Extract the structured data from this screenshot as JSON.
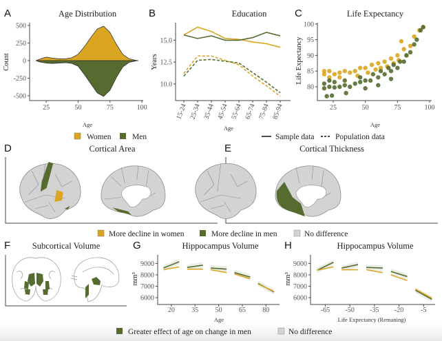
{
  "colors": {
    "women": "#DAA520",
    "men": "#556B2F",
    "no_difference": "#D3D3D3",
    "outline": "#8a8a8a"
  },
  "panels": {
    "A": {
      "letter": "A",
      "title": "Age Distribution"
    },
    "B": {
      "letter": "B",
      "title": "Education"
    },
    "C": {
      "letter": "C",
      "title": "Life Expectancy"
    },
    "D": {
      "letter": "D",
      "title": "Cortical Area"
    },
    "E": {
      "letter": "E",
      "title": "Cortical Thickness"
    },
    "F": {
      "letter": "F",
      "title": "Subcortical Volume"
    },
    "G": {
      "letter": "G",
      "title": "Hippocampus Volume"
    },
    "H": {
      "letter": "H",
      "title": "Hippocampus Volume"
    }
  },
  "legends": {
    "sex": {
      "women": "Women",
      "men": "Men"
    },
    "data_type": {
      "sample": "Sample data",
      "population": "Population data"
    },
    "cortical": {
      "women": "More decline in women",
      "men": "More decline in men",
      "none": "No difference"
    },
    "hippocampus": {
      "men": "Greater effect of age on change in men",
      "none": "No difference"
    }
  },
  "chart_data": [
    {
      "panel": "A",
      "type": "area",
      "title": "Age Distribution",
      "xlabel": "Age",
      "ylabel": "Count",
      "xlim": [
        12,
        101
      ],
      "ylim": [
        -569,
        539
      ],
      "xticks": [
        25,
        50,
        75,
        100
      ],
      "yticks": [
        500,
        250,
        0,
        -250,
        -500
      ],
      "x": [
        17,
        20,
        25,
        30,
        35,
        40,
        45,
        50,
        55,
        60,
        65,
        70,
        75,
        80,
        85,
        90,
        95,
        97
      ],
      "series": [
        {
          "name": "Women",
          "values": [
            0,
            20,
            50,
            35,
            25,
            25,
            40,
            90,
            200,
            330,
            450,
            490,
            400,
            230,
            90,
            25,
            5,
            0
          ]
        },
        {
          "name": "Men",
          "values": [
            0,
            -20,
            -35,
            -40,
            -35,
            -30,
            -40,
            -80,
            -200,
            -330,
            -460,
            -510,
            -420,
            -240,
            -90,
            -25,
            -5,
            0
          ]
        }
      ]
    },
    {
      "panel": "B",
      "type": "line",
      "title": "Education",
      "xlabel": "Age",
      "ylabel": "Years",
      "ylim": [
        8.1,
        17
      ],
      "yticks": [
        15.0,
        12.5,
        10.0
      ],
      "categories": [
        "15-24",
        "25-34",
        "35-44",
        "45-54",
        "55-64",
        "65-74",
        "75-84",
        "85-94"
      ],
      "series": [
        {
          "sex": "Women",
          "source": "Sample data",
          "values": [
            15.6,
            16.5,
            16.0,
            15.2,
            15.1,
            14.8,
            14.6,
            14.2
          ]
        },
        {
          "sex": "Men",
          "source": "Sample data",
          "values": [
            15.6,
            15.2,
            15.5,
            15.0,
            15.0,
            15.3,
            15.9,
            15.5
          ]
        },
        {
          "sex": "Women",
          "source": "Population data",
          "values": [
            11.2,
            13.2,
            13.2,
            12.7,
            12.2,
            10.9,
            9.8,
            8.6
          ]
        },
        {
          "sex": "Men",
          "source": "Population data",
          "values": [
            10.9,
            12.7,
            12.8,
            12.6,
            12.4,
            11.3,
            10.2,
            9.0
          ]
        }
      ]
    },
    {
      "panel": "C",
      "type": "scatter",
      "title": "Life Expectancy",
      "xlabel": "Age",
      "ylabel": "Life Expectancy",
      "xlim": [
        12.7,
        101.6
      ],
      "ylim": [
        75.6,
        100.4
      ],
      "xticks": [
        25,
        50,
        75,
        100
      ],
      "yticks": [
        100,
        95,
        90,
        85,
        80
      ],
      "series": [
        {
          "sex": "Women",
          "points": [
            [
              18,
              84
            ],
            [
              18,
              85
            ],
            [
              22,
              83
            ],
            [
              22,
              85
            ],
            [
              26,
              84
            ],
            [
              30,
              84.5
            ],
            [
              30,
              83
            ],
            [
              34,
              85
            ],
            [
              38,
              84.5
            ],
            [
              42,
              85
            ],
            [
              44,
              83.5
            ],
            [
              46,
              86
            ],
            [
              50,
              86
            ],
            [
              52,
              84.5
            ],
            [
              55,
              87
            ],
            [
              58,
              85.5
            ],
            [
              60,
              87.5
            ],
            [
              62,
              86
            ],
            [
              65,
              88
            ],
            [
              67,
              86.5
            ],
            [
              70,
              89
            ],
            [
              72,
              87.5
            ],
            [
              75,
              90
            ],
            [
              76,
              88.5
            ],
            [
              78,
              94.5
            ],
            [
              80,
              92
            ],
            [
              82,
              90
            ],
            [
              85,
              93
            ],
            [
              88,
              96
            ],
            [
              92,
              98
            ],
            [
              95,
              99
            ]
          ]
        },
        {
          "sex": "Men",
          "points": [
            [
              18,
              79.5
            ],
            [
              18,
              81
            ],
            [
              22,
              80
            ],
            [
              22,
              82
            ],
            [
              26,
              79.8
            ],
            [
              26,
              81.5
            ],
            [
              30,
              80
            ],
            [
              34,
              80.5
            ],
            [
              34,
              82
            ],
            [
              38,
              80
            ],
            [
              42,
              81
            ],
            [
              46,
              81.5
            ],
            [
              46,
              83
            ],
            [
              50,
              82
            ],
            [
              54,
              82
            ],
            [
              56,
              84
            ],
            [
              60,
              83
            ],
            [
              62,
              85
            ],
            [
              65,
              84
            ],
            [
              68,
              86
            ],
            [
              70,
              85
            ],
            [
              72,
              87
            ],
            [
              75,
              86
            ],
            [
              77,
              88
            ],
            [
              80,
              88
            ],
            [
              82,
              90
            ],
            [
              85,
              91
            ],
            [
              88,
              93.5
            ],
            [
              90,
              95
            ],
            [
              93,
              98
            ],
            [
              95,
              99
            ],
            [
              20,
              77
            ],
            [
              24,
              77.2
            ],
            [
              35,
              78
            ],
            [
              50,
              79.5
            ],
            [
              60,
              80.5
            ],
            [
              70,
              82.5
            ]
          ]
        }
      ]
    },
    {
      "panel": "G",
      "type": "line",
      "title": "Hippocampus Volume",
      "xlabel": "Age",
      "ylabel": "mm³",
      "xlim": [
        11.3,
        88.6
      ],
      "ylim": [
        5400,
        9750
      ],
      "xticks": [
        20,
        35,
        50,
        65,
        80
      ],
      "yticks": [
        9000,
        8000,
        7000,
        6000
      ],
      "series": [
        {
          "sex": "Men",
          "segments": [
            [
              [
                15,
                8600
              ],
              [
                25,
                9150
              ]
            ],
            [
              [
                30,
                8650
              ],
              [
                40,
                8850
              ]
            ],
            [
              [
                45,
                8600
              ],
              [
                55,
                8500
              ]
            ],
            [
              [
                60,
                8200
              ],
              [
                70,
                7800
              ]
            ],
            [
              [
                75,
                7250
              ],
              [
                85,
                6500
              ]
            ]
          ]
        },
        {
          "sex": "Women",
          "segments": [
            [
              [
                15,
                8450
              ],
              [
                25,
                8700
              ]
            ],
            [
              [
                30,
                8500
              ],
              [
                40,
                8500
              ]
            ],
            [
              [
                45,
                8450
              ],
              [
                55,
                8200
              ]
            ],
            [
              [
                60,
                8100
              ],
              [
                70,
                7650
              ]
            ],
            [
              [
                75,
                7200
              ],
              [
                85,
                6550
              ]
            ]
          ]
        }
      ]
    },
    {
      "panel": "H",
      "type": "line",
      "title": "Hippocampus Volume",
      "xlabel": "Life Expectancy (Remaning)",
      "ylabel": "mm³",
      "xlim": [
        -74,
        2
      ],
      "ylim": [
        5400,
        9750
      ],
      "xticks": [
        -65,
        -50,
        -35,
        -20,
        -5
      ],
      "yticks": [
        9000,
        8000,
        7000,
        6000
      ],
      "series": [
        {
          "sex": "Men",
          "segments": [
            [
              [
                -70,
                8400
              ],
              [
                -60,
                9100
              ]
            ],
            [
              [
                -55,
                8600
              ],
              [
                -45,
                8900
              ]
            ],
            [
              [
                -40,
                8650
              ],
              [
                -30,
                8600
              ]
            ],
            [
              [
                -25,
                8300
              ],
              [
                -15,
                7850
              ]
            ],
            [
              [
                -10,
                6650
              ],
              [
                0,
                5850
              ]
            ]
          ]
        },
        {
          "sex": "Women",
          "segments": [
            [
              [
                -70,
                8400
              ],
              [
                -60,
                8700
              ]
            ],
            [
              [
                -55,
                8450
              ],
              [
                -45,
                8450
              ]
            ],
            [
              [
                -40,
                8450
              ],
              [
                -30,
                8200
              ]
            ],
            [
              [
                -25,
                8000
              ],
              [
                -15,
                7500
              ]
            ],
            [
              [
                -10,
                6750
              ],
              [
                0,
                5950
              ]
            ]
          ]
        }
      ]
    }
  ]
}
